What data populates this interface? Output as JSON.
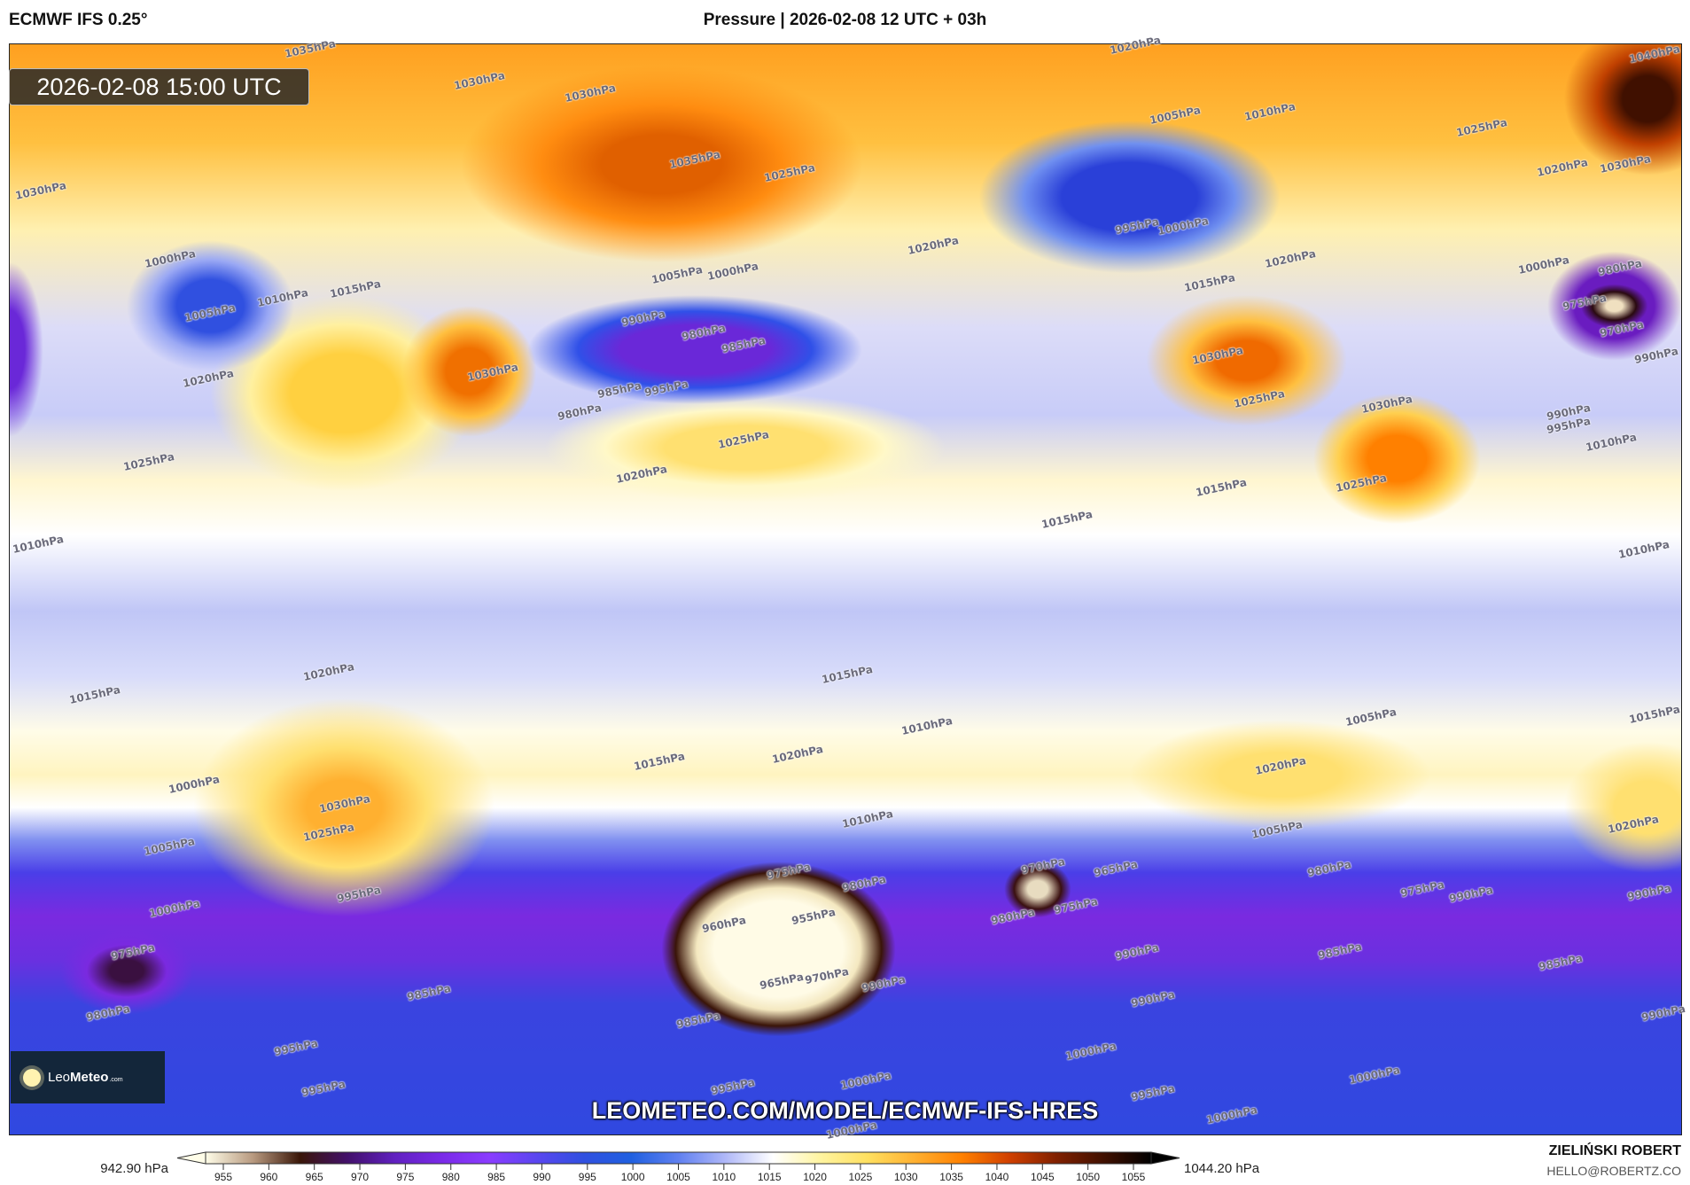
{
  "header": {
    "model": "ECMWF IFS 0.25°",
    "title": "Pressure | 2026-02-08 12 UTC + 03h"
  },
  "map": {
    "valid_time": "2026-02-08 15:00 UTC",
    "url": "LEOMETEO.COM/MODEL/ECMWF-IFS-HRES",
    "logo": {
      "name_light": "Leo",
      "name_bold": "Meteo",
      "suffix": ".com"
    },
    "contour_labels": [
      "1035hPa",
      "1030hPa",
      "1030hPa",
      "1035hPa",
      "1025hPa",
      "1020hPa",
      "1005hPa",
      "1010hPa",
      "1025hPa",
      "1020hPa",
      "1030hPa",
      "1040hPa",
      "1030hPa",
      "1000hPa",
      "1010hPa",
      "1015hPa",
      "1005hPa",
      "1020hPa",
      "1025hPa",
      "995hPa",
      "1000hPa",
      "1020hPa",
      "1005hPa",
      "1000hPa",
      "990hPa",
      "980hPa",
      "985hPa",
      "980hPa",
      "985hPa",
      "995hPa",
      "1030hPa",
      "1025hPa",
      "1020hPa",
      "1015hPa",
      "1020hPa",
      "1030hPa",
      "1025hPa",
      "1030hPa",
      "1025hPa",
      "1015hPa",
      "1015hPa",
      "1000hPa",
      "980hPa",
      "975hPa",
      "970hPa",
      "990hPa",
      "990hPa",
      "995hPa",
      "1010hPa",
      "1010hPa",
      "1010hPa",
      "1015hPa",
      "1020hPa",
      "1015hPa",
      "1010hPa",
      "1005hPa",
      "1015hPa",
      "1020hPa",
      "1015hPa",
      "1020hPa",
      "1020hPa",
      "1010hPa",
      "1005hPa",
      "1000hPa",
      "1030hPa",
      "1025hPa",
      "1005hPa",
      "995hPa",
      "1000hPa",
      "975hPa",
      "980hPa",
      "960hPa",
      "955hPa",
      "965hPa",
      "970hPa",
      "970hPa",
      "965hPa",
      "980hPa",
      "975hPa",
      "980hPa",
      "975hPa",
      "990hPa",
      "990hPa",
      "975hPa",
      "980hPa",
      "985hPa",
      "990hPa",
      "985hPa",
      "985hPa",
      "990hPa",
      "985hPa",
      "990hPa",
      "995hPa",
      "995hPa",
      "1000hPa",
      "995hPa",
      "1000hPa",
      "995hPa",
      "1000hPa",
      "1000hPa",
      "1000hPa",
      "990hPa"
    ]
  },
  "colorbar": {
    "unit": "hPa",
    "min_label": "942.90 hPa",
    "max_label": "1044.20 hPa",
    "ticks": [
      955,
      960,
      965,
      970,
      975,
      980,
      985,
      990,
      995,
      1000,
      1005,
      1010,
      1015,
      1020,
      1025,
      1030,
      1035,
      1040,
      1045,
      1050,
      1055
    ],
    "colors": [
      "#fffde8",
      "#b89a80",
      "#3a1608",
      "#42106a",
      "#6020c0",
      "#7a2ae8",
      "#8a3cff",
      "#5a46f0",
      "#3050e0",
      "#2060e0",
      "#6080f0",
      "#b0b8f8",
      "#ffffff",
      "#fff4a0",
      "#ffe060",
      "#ffb030",
      "#ff8000",
      "#d04000",
      "#802000",
      "#401000",
      "#000000"
    ]
  },
  "footer": {
    "author": "ZIELIŃSKI ROBERT",
    "email": "HELLO@ROBERTZ.CO"
  }
}
